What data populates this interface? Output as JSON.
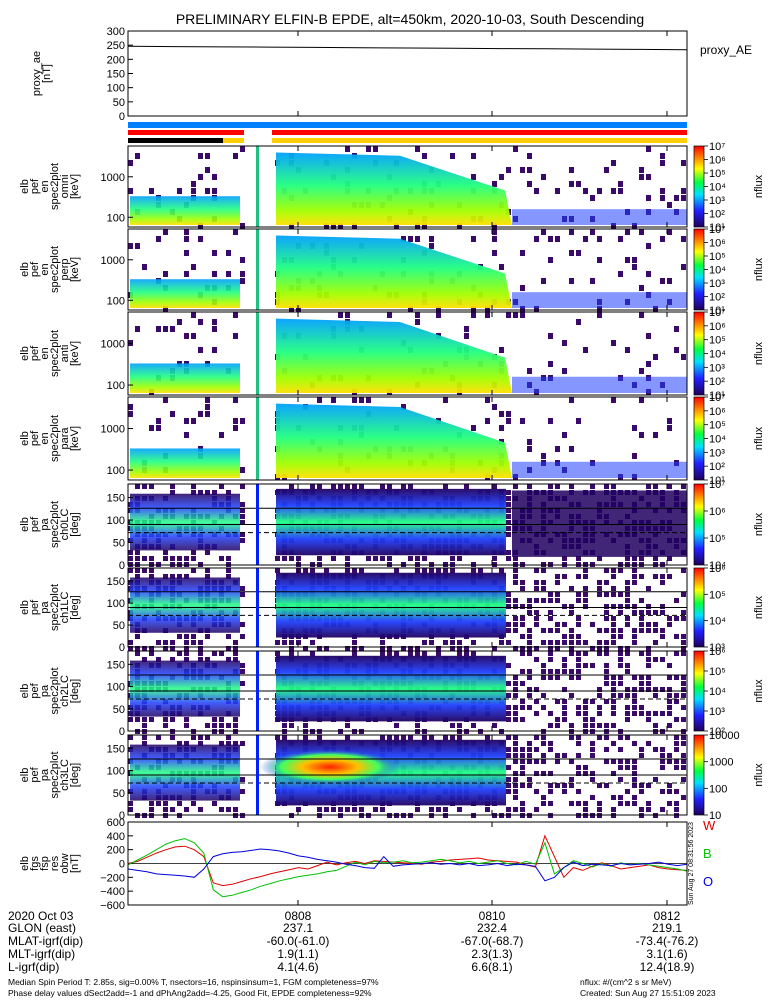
{
  "chart_data": {
    "type": "heatmap",
    "title": "PRELIMINARY ELFIN-B EPDE, alt=450km, 2020-10-03, South Descending",
    "x_tick_labels": [
      "0808",
      "0810",
      "0812"
    ],
    "panels": [
      {
        "ylabel": [
          "proxy_ae",
          "[nT]"
        ],
        "right_label": "proxy_AE",
        "type": "line",
        "yticks": [
          "0",
          "50",
          "100",
          "150",
          "200",
          "250",
          "300"
        ],
        "ylim": [
          0,
          300
        ],
        "values": [
          246,
          245,
          244,
          243,
          242,
          241,
          240,
          239,
          238,
          237,
          236,
          235,
          234
        ]
      },
      {
        "ylabel": [
          "elb",
          "pef",
          "en",
          "spec2plot",
          "omni",
          "[keV]"
        ],
        "yticks": [
          "100",
          "1000"
        ],
        "zlabel": "nflux",
        "colorbar": [
          "10¹",
          "10²",
          "10³",
          "10⁴",
          "10⁵",
          "10⁶",
          "10⁷"
        ]
      },
      {
        "ylabel": [
          "elb",
          "pef",
          "en",
          "spec2plot",
          "perp",
          "[keV]"
        ],
        "yticks": [
          "100",
          "1000"
        ],
        "zlabel": "nflux",
        "colorbar": [
          "10¹",
          "10²",
          "10³",
          "10⁴",
          "10⁵",
          "10⁶",
          "10⁷"
        ]
      },
      {
        "ylabel": [
          "elb",
          "pef",
          "en",
          "spec2plot",
          "anti",
          "[keV]"
        ],
        "yticks": [
          "100",
          "1000"
        ],
        "zlabel": "nflux",
        "colorbar": [
          "10¹",
          "10²",
          "10³",
          "10⁴",
          "10⁵",
          "10⁶",
          "10⁷"
        ]
      },
      {
        "ylabel": [
          "elb",
          "pef",
          "en",
          "spec2plot",
          "para",
          "[keV]"
        ],
        "yticks": [
          "100",
          "1000"
        ],
        "zlabel": "nflux",
        "colorbar": [
          "10¹",
          "10²",
          "10³",
          "10⁴",
          "10⁵",
          "10⁶",
          "10⁷"
        ]
      },
      {
        "ylabel": [
          "elb",
          "pef",
          "pa",
          "spec2plot",
          "ch0LC",
          "[deg]"
        ],
        "yticks": [
          "0",
          "50",
          "100",
          "150"
        ],
        "zlabel": "nflux",
        "colorbar": [
          "10⁴",
          "10⁵",
          "10⁶",
          "10⁷"
        ]
      },
      {
        "ylabel": [
          "elb",
          "pef",
          "pa",
          "spec2plot",
          "ch1LC",
          "[deg]"
        ],
        "yticks": [
          "0",
          "50",
          "100",
          "150"
        ],
        "zlabel": "nflux",
        "colorbar": [
          "10³",
          "10⁴",
          "10⁵",
          "10⁶"
        ]
      },
      {
        "ylabel": [
          "elb",
          "pef",
          "pa",
          "spec2plot",
          "ch2LC",
          "[deg]"
        ],
        "yticks": [
          "0",
          "50",
          "100",
          "150"
        ],
        "zlabel": "nflux",
        "colorbar": [
          "10²",
          "10³",
          "10⁴",
          "10⁵",
          "10⁶"
        ]
      },
      {
        "ylabel": [
          "elb",
          "pef",
          "pa",
          "spec2plot",
          "ch3LC",
          "[deg]"
        ],
        "yticks": [
          "0",
          "50",
          "100",
          "150"
        ],
        "zlabel": "nflux",
        "colorbar": [
          "10",
          "100",
          "1000",
          "10000"
        ]
      },
      {
        "ylabel": [
          "elb",
          "fgs",
          "fsp",
          "res",
          "obw",
          "[nT]"
        ],
        "yticks": [
          "−600",
          "−400",
          "−200",
          "0",
          "200",
          "400",
          "600"
        ],
        "ylim": [
          -600,
          600
        ],
        "legend": [
          "W",
          "B",
          "O"
        ],
        "legend_colors": [
          "#e00000",
          "#00c000",
          "#0000e0"
        ],
        "side_stamp": "Sun Aug 27 08:31:56 2023",
        "series": [
          {
            "name": "W",
            "color": "#e00000",
            "values": [
              0,
              30,
              90,
              150,
              200,
              240,
              250,
              200,
              100,
              -280,
              -320,
              -300,
              -260,
              -220,
              -190,
              -150,
              -120,
              -90,
              -60,
              -80,
              -30,
              20,
              -20,
              10,
              30,
              0,
              40,
              30,
              20,
              10,
              0,
              -10,
              20,
              30,
              50,
              60,
              70,
              80,
              50,
              40,
              30,
              20,
              -20,
              -50,
              400,
              100,
              -200,
              -60,
              -100,
              -40,
              10,
              -30,
              -80,
              -60,
              -40,
              -20,
              -60,
              -80,
              -90,
              -100
            ]
          },
          {
            "name": "B",
            "color": "#00c000",
            "values": [
              -20,
              50,
              120,
              200,
              280,
              330,
              360,
              300,
              150,
              -380,
              -480,
              -460,
              -420,
              -380,
              -330,
              -290,
              -250,
              -220,
              -190,
              -170,
              -150,
              -120,
              -100,
              -40,
              20,
              -20,
              30,
              10,
              20,
              40,
              10,
              20,
              40,
              60,
              40,
              10,
              30,
              0,
              20,
              40,
              0,
              -20,
              30,
              -10,
              300,
              -150,
              -60,
              40,
              0,
              -50,
              0,
              -40,
              10,
              -20,
              0,
              -20,
              -40,
              -60,
              -80,
              -110
            ]
          },
          {
            "name": "O",
            "color": "#0000e0",
            "values": [
              -80,
              -100,
              -120,
              -150,
              -160,
              -170,
              -180,
              -200,
              -80,
              100,
              140,
              160,
              170,
              190,
              210,
              200,
              180,
              150,
              110,
              90,
              60,
              40,
              20,
              -10,
              -30,
              -60,
              -70,
              100,
              -40,
              -20,
              -10,
              0,
              10,
              -10,
              0,
              -20,
              0,
              -30,
              -20,
              0,
              -30,
              -10,
              -20,
              -40,
              -250,
              -200,
              -60,
              20,
              -30,
              -10,
              -20,
              -30,
              0,
              -20,
              -10,
              0,
              20,
              -10,
              -30,
              -10
            ]
          }
        ]
      }
    ]
  },
  "footer": {
    "rows": [
      {
        "label": "2020 Oct 03",
        "values": [
          "0808",
          "0810",
          "0812"
        ]
      },
      {
        "label": "GLON (east)",
        "values": [
          "237.1",
          "232.4",
          "219.1"
        ]
      },
      {
        "label": "MLAT-igrf(dip)",
        "values": [
          "-60.0(-61.0)",
          "-67.0(-68.7)",
          "-73.4(-76.2)"
        ]
      },
      {
        "label": "MLT-igrf(dip)",
        "values": [
          "1.9(1.1)",
          "2.3(1.3)",
          "3.1(1.6)"
        ]
      },
      {
        "label": "L-igrf(dip)",
        "values": [
          "4.1(4.6)",
          "6.6(8.1)",
          "12.4(18.9)"
        ]
      }
    ],
    "note_line1": "Median Spin Period T: 2.85s, sig=0.00% T, nsectors=16, nspinsinsum=1, FGM completeness=97%",
    "note_line2": "Phase delay values dSect2add=-1 and dPhAng2add=-4.25, Good Fit, EPDE completeness=92%",
    "nflux_units": "nflux: #/(cm^2 s sr MeV)",
    "created": "Created: Sun Aug 27 15:51:09 2023"
  },
  "colors": {
    "status_blue": "#0080ff",
    "status_red": "#ff0000",
    "status_black": "#000000",
    "status_yellow": "#ffd000",
    "lower_bar_red": "#ff0000",
    "lower_bar_dark": "#300000"
  }
}
